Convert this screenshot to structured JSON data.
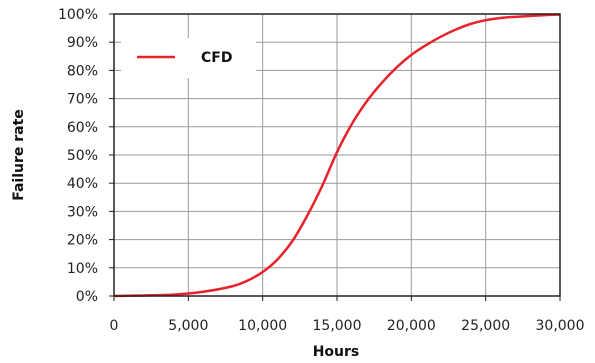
{
  "chart_data": {
    "type": "line",
    "xlabel": "Hours",
    "ylabel": "Failure rate",
    "xlim": [
      0,
      30000
    ],
    "ylim": [
      0,
      100
    ],
    "grid": true,
    "legend": {
      "placement": "top-left",
      "entries": [
        "CFD"
      ]
    },
    "x_ticks": [
      "0",
      "5,000",
      "10,000",
      "15,000",
      "20,000",
      "25,000",
      "30,000"
    ],
    "y_ticks": [
      "0%",
      "10%",
      "20%",
      "30%",
      "40%",
      "50%",
      "60%",
      "70%",
      "80%",
      "90%",
      "100%"
    ],
    "series": [
      {
        "name": "CFD",
        "color": "#e8222b",
        "x": [
          0,
          2000,
          4000,
          6000,
          8000,
          9000,
          10000,
          11000,
          12000,
          13000,
          14000,
          15000,
          16000,
          17000,
          18000,
          19000,
          20000,
          21000,
          22000,
          23000,
          24000,
          25000,
          26000,
          27000,
          28000,
          29000,
          30000
        ],
        "y": [
          0,
          0.2,
          0.5,
          1.5,
          3.5,
          5.5,
          8.5,
          13,
          19.5,
          28.5,
          39,
          51,
          61,
          69,
          75.5,
          81,
          85.5,
          89,
          92,
          94.5,
          96.5,
          97.8,
          98.6,
          99,
          99.3,
          99.6,
          99.8
        ]
      }
    ]
  }
}
